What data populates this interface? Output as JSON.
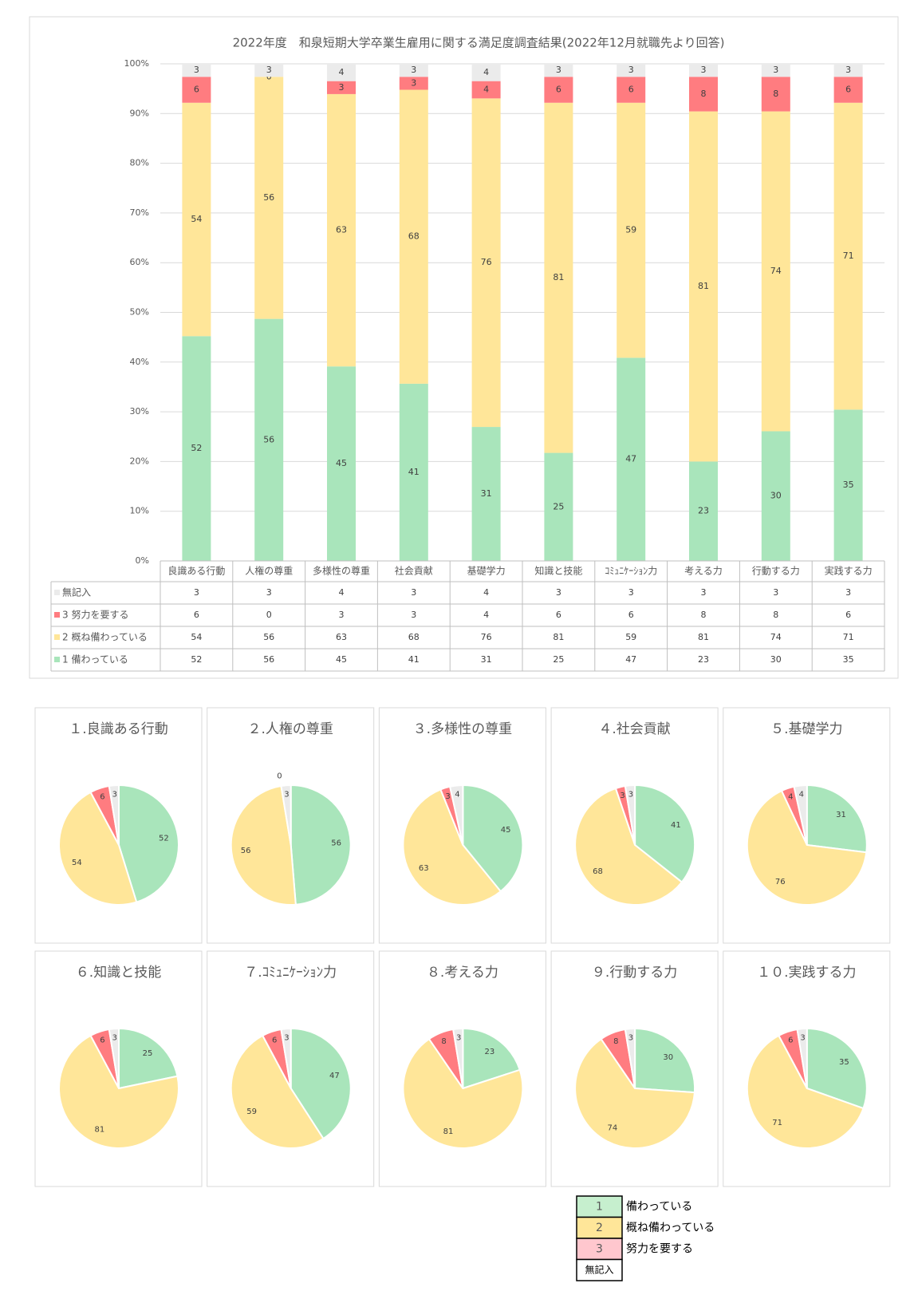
{
  "chart_data": [
    {
      "type": "bar",
      "stacking": "percent",
      "title": "2022年度　和泉短期大学卒業生雇用に関する満足度調査結果(2022年12月就職先より回答)",
      "categories": [
        "良識ある行動",
        "人権の尊重",
        "多様性の尊重",
        "社会貢献",
        "基礎学力",
        "知識と技能",
        "ｺﾐｭﾆｹｰｼｮﾝ力",
        "考える力",
        "行動する力",
        "実践する力"
      ],
      "series": [
        {
          "name": "無記入",
          "color": "#ebebeb",
          "values": [
            3,
            3,
            4,
            3,
            4,
            3,
            3,
            3,
            3,
            3
          ]
        },
        {
          "name": "3 努力を要する",
          "color": "#ff7c80",
          "values": [
            6,
            0,
            3,
            3,
            4,
            6,
            6,
            8,
            8,
            6
          ]
        },
        {
          "name": "2 概ね備わっている",
          "color": "#ffe699",
          "values": [
            54,
            56,
            63,
            68,
            76,
            81,
            59,
            81,
            74,
            71
          ]
        },
        {
          "name": "1 備わっている",
          "color": "#a9e5bb",
          "values": [
            52,
            56,
            45,
            41,
            31,
            25,
            47,
            23,
            30,
            35
          ]
        }
      ],
      "ylim": [
        0,
        100
      ],
      "yticks": [
        {
          "value": 0,
          "label": "0%"
        },
        {
          "value": 10,
          "label": "10%"
        },
        {
          "value": 20,
          "label": "20%"
        },
        {
          "value": 30,
          "label": "30%"
        },
        {
          "value": 40,
          "label": "40%"
        },
        {
          "value": 50,
          "label": "50%"
        },
        {
          "value": 60,
          "label": "60%"
        },
        {
          "value": 70,
          "label": "70%"
        },
        {
          "value": 80,
          "label": "80%"
        },
        {
          "value": 90,
          "label": "90%"
        },
        {
          "value": 100,
          "label": "100%"
        }
      ],
      "grid": true,
      "data_table": true
    },
    {
      "type": "pie",
      "title": "１.良識ある行動",
      "values": [
        52,
        54,
        6,
        3
      ],
      "colors": [
        "#a9e5bb",
        "#ffe699",
        "#ff7c80",
        "#ebebeb"
      ]
    },
    {
      "type": "pie",
      "title": "２.人権の尊重",
      "values": [
        56,
        56,
        0,
        3
      ],
      "colors": [
        "#a9e5bb",
        "#ffe699",
        "#ff7c80",
        "#ebebeb"
      ]
    },
    {
      "type": "pie",
      "title": "３.多様性の尊重",
      "values": [
        45,
        63,
        3,
        4
      ],
      "colors": [
        "#a9e5bb",
        "#ffe699",
        "#ff7c80",
        "#ebebeb"
      ]
    },
    {
      "type": "pie",
      "title": "４.社会貢献",
      "values": [
        41,
        68,
        3,
        3
      ],
      "colors": [
        "#a9e5bb",
        "#ffe699",
        "#ff7c80",
        "#ebebeb"
      ]
    },
    {
      "type": "pie",
      "title": "５.基礎学力",
      "values": [
        31,
        76,
        4,
        4
      ],
      "colors": [
        "#a9e5bb",
        "#ffe699",
        "#ff7c80",
        "#ebebeb"
      ]
    },
    {
      "type": "pie",
      "title": "６.知識と技能",
      "values": [
        25,
        81,
        6,
        3
      ],
      "colors": [
        "#a9e5bb",
        "#ffe699",
        "#ff7c80",
        "#ebebeb"
      ]
    },
    {
      "type": "pie",
      "title": "７.ｺﾐｭﾆｹｰｼｮﾝ力",
      "values": [
        47,
        59,
        6,
        3
      ],
      "colors": [
        "#a9e5bb",
        "#ffe699",
        "#ff7c80",
        "#ebebeb"
      ]
    },
    {
      "type": "pie",
      "title": "８.考える力",
      "values": [
        23,
        81,
        8,
        3
      ],
      "colors": [
        "#a9e5bb",
        "#ffe699",
        "#ff7c80",
        "#ebebeb"
      ]
    },
    {
      "type": "pie",
      "title": "９.行動する力",
      "values": [
        30,
        74,
        8,
        3
      ],
      "colors": [
        "#a9e5bb",
        "#ffe699",
        "#ff7c80",
        "#ebebeb"
      ]
    },
    {
      "type": "pie",
      "title": "１０.実践する力",
      "values": [
        35,
        71,
        6,
        3
      ],
      "colors": [
        "#a9e5bb",
        "#ffe699",
        "#ff7c80",
        "#ebebeb"
      ]
    }
  ],
  "legend": [
    {
      "key": "1",
      "label": "備わっている",
      "color": "#c6efce"
    },
    {
      "key": "2",
      "label": "概ね備わっている",
      "color": "#ffe699"
    },
    {
      "key": "3",
      "label": "努力を要する",
      "color": "#ffc7ce"
    },
    {
      "key": "無記入",
      "color": "#ffffff"
    }
  ]
}
